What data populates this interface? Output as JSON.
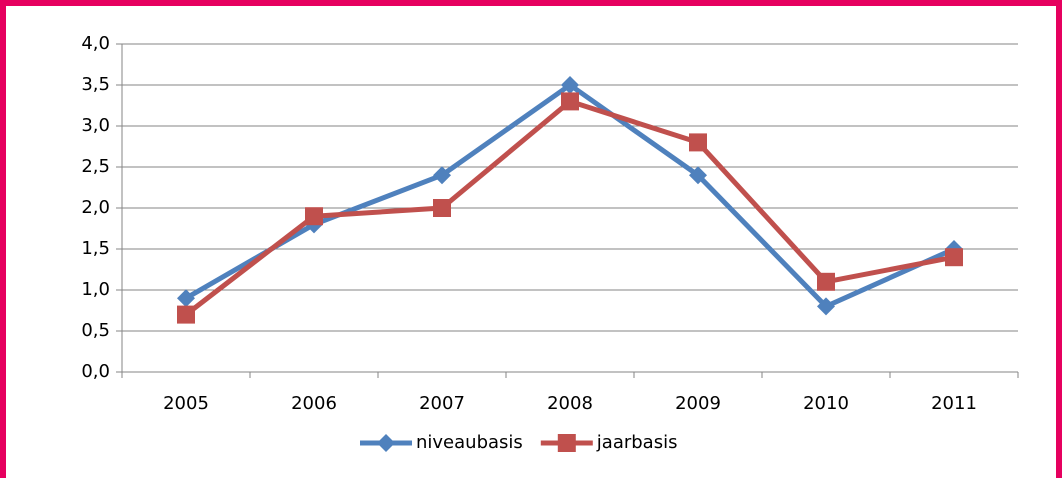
{
  "chart_data": {
    "type": "line",
    "categories": [
      "2005",
      "2006",
      "2007",
      "2008",
      "2009",
      "2010",
      "2011"
    ],
    "series": [
      {
        "name": "niveaubasis",
        "color": "#4f81bd",
        "marker": "diamond",
        "values": [
          0.9,
          1.8,
          2.4,
          3.5,
          2.4,
          0.8,
          1.5
        ]
      },
      {
        "name": "jaarbasis",
        "color": "#c0504d",
        "marker": "square",
        "values": [
          0.7,
          1.9,
          2.0,
          3.3,
          2.8,
          1.1,
          1.4
        ]
      }
    ],
    "ylim": [
      0,
      4
    ],
    "yticks": [
      {
        "value": 0,
        "label": "0,0"
      },
      {
        "value": 0.5,
        "label": "0,5"
      },
      {
        "value": 1,
        "label": "1,0"
      },
      {
        "value": 1.5,
        "label": "1,5"
      },
      {
        "value": 2,
        "label": "2,0"
      },
      {
        "value": 2.5,
        "label": "2,5"
      },
      {
        "value": 3,
        "label": "3,0"
      },
      {
        "value": 3.5,
        "label": "3,5"
      },
      {
        "value": 4,
        "label": "4,0"
      }
    ],
    "grid": true,
    "legend": "bottom"
  }
}
